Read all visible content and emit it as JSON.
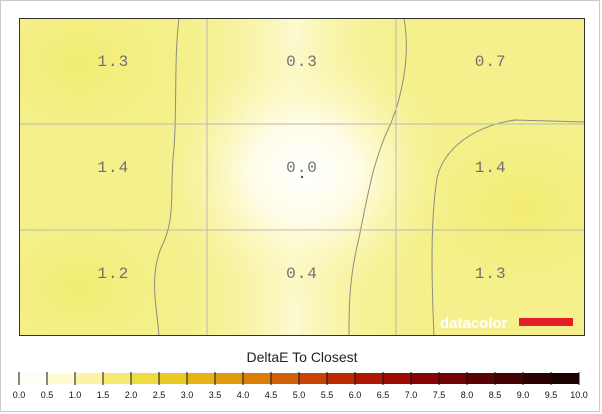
{
  "chart_data": {
    "type": "heatmap",
    "grid": {
      "rows": 3,
      "cols": 3
    },
    "values": [
      [
        1.3,
        0.3,
        0.7
      ],
      [
        1.4,
        0.0,
        1.4
      ],
      [
        1.2,
        0.4,
        1.3
      ]
    ],
    "labels": [
      [
        "1.3",
        "0.3",
        "0.7"
      ],
      [
        "1.4",
        "0.0",
        "1.4"
      ],
      [
        "1.2",
        "0.4",
        "1.3"
      ]
    ],
    "scale_title": "DeltaE To Closest",
    "scale_range": [
      0,
      10
    ],
    "scale_ticks": [
      "0.0",
      "0.5",
      "1.0",
      "1.5",
      "2.0",
      "2.5",
      "3.0",
      "3.5",
      "4.0",
      "4.5",
      "5.0",
      "5.5",
      "6.0",
      "6.5",
      "7.0",
      "7.5",
      "8.0",
      "8.5",
      "9.0",
      "9.5",
      "10.0"
    ],
    "scale_colors": [
      "#fffef6",
      "#fffbd2",
      "#fcf4a4",
      "#f6ea72",
      "#efdc45",
      "#e9c924",
      "#e5b414",
      "#e09a0c",
      "#da7e08",
      "#d16106",
      "#c84404",
      "#be2b03",
      "#b01702",
      "#9c0c02",
      "#880404",
      "#720303",
      "#5a0303",
      "#420202",
      "#2e0101",
      "#1a0000"
    ],
    "logo": "datacolor",
    "logo_color": "#e41e26"
  }
}
